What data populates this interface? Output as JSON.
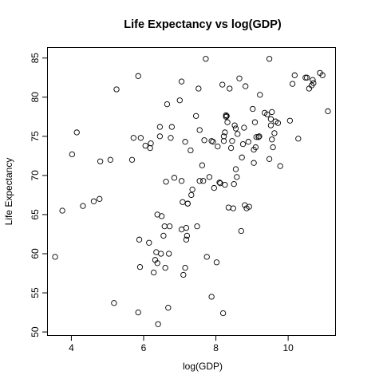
{
  "chart_data": {
    "type": "scatter",
    "title": "Life Expectancy vs  log(GDP)",
    "xlabel": "log(GDP)",
    "ylabel": "Life Expectancy",
    "xlim": [
      3.35,
      11.3
    ],
    "ylim": [
      49.6,
      86.3
    ],
    "xticks": [
      4,
      6,
      8,
      10
    ],
    "yticks": [
      50,
      55,
      60,
      65,
      70,
      75,
      80,
      85
    ],
    "grid": false,
    "point_color": "#000000",
    "points": [
      [
        3.55,
        59.6
      ],
      [
        3.75,
        65.5
      ],
      [
        4.02,
        72.7
      ],
      [
        4.15,
        75.5
      ],
      [
        4.32,
        66.1
      ],
      [
        4.62,
        66.7
      ],
      [
        4.78,
        67.0
      ],
      [
        4.8,
        71.8
      ],
      [
        5.08,
        72.0
      ],
      [
        5.18,
        53.7
      ],
      [
        5.25,
        81.0
      ],
      [
        5.68,
        72.0
      ],
      [
        5.72,
        74.8
      ],
      [
        5.85,
        82.7
      ],
      [
        5.85,
        52.5
      ],
      [
        5.88,
        61.8
      ],
      [
        5.9,
        58.3
      ],
      [
        5.92,
        74.8
      ],
      [
        6.05,
        73.8
      ],
      [
        6.15,
        61.4
      ],
      [
        6.18,
        73.5
      ],
      [
        6.2,
        74.1
      ],
      [
        6.28,
        57.6
      ],
      [
        6.32,
        59.2
      ],
      [
        6.35,
        60.2
      ],
      [
        6.38,
        65.0
      ],
      [
        6.38,
        58.8
      ],
      [
        6.4,
        51.0
      ],
      [
        6.45,
        76.2
      ],
      [
        6.45,
        75.0
      ],
      [
        6.48,
        60.0
      ],
      [
        6.5,
        64.8
      ],
      [
        6.55,
        62.3
      ],
      [
        6.58,
        63.5
      ],
      [
        6.6,
        58.2
      ],
      [
        6.62,
        69.2
      ],
      [
        6.65,
        79.1
      ],
      [
        6.68,
        53.1
      ],
      [
        6.7,
        60.0
      ],
      [
        6.72,
        63.5
      ],
      [
        6.75,
        74.8
      ],
      [
        6.78,
        76.2
      ],
      [
        6.85,
        69.7
      ],
      [
        7.0,
        79.6
      ],
      [
        7.05,
        82.0
      ],
      [
        7.05,
        63.1
      ],
      [
        7.05,
        69.3
      ],
      [
        7.08,
        66.6
      ],
      [
        7.1,
        57.3
      ],
      [
        7.15,
        74.3
      ],
      [
        7.15,
        58.2
      ],
      [
        7.18,
        61.8
      ],
      [
        7.18,
        63.3
      ],
      [
        7.2,
        62.3
      ],
      [
        7.22,
        66.4
      ],
      [
        7.22,
        66.4
      ],
      [
        7.3,
        73.2
      ],
      [
        7.32,
        67.5
      ],
      [
        7.35,
        68.2
      ],
      [
        7.45,
        77.6
      ],
      [
        7.48,
        63.5
      ],
      [
        7.52,
        81.1
      ],
      [
        7.55,
        69.3
      ],
      [
        7.55,
        75.8
      ],
      [
        7.62,
        71.3
      ],
      [
        7.65,
        69.3
      ],
      [
        7.68,
        74.5
      ],
      [
        7.72,
        84.9
      ],
      [
        7.75,
        59.6
      ],
      [
        7.82,
        69.8
      ],
      [
        7.88,
        74.4
      ],
      [
        7.88,
        54.5
      ],
      [
        7.92,
        74.3
      ],
      [
        7.95,
        68.4
      ],
      [
        8.02,
        58.9
      ],
      [
        8.05,
        73.7
      ],
      [
        8.1,
        69.1
      ],
      [
        8.12,
        69.0
      ],
      [
        8.18,
        81.6
      ],
      [
        8.2,
        52.4
      ],
      [
        8.22,
        74.4
      ],
      [
        8.22,
        75.0
      ],
      [
        8.25,
        75.5
      ],
      [
        8.25,
        68.8
      ],
      [
        8.28,
        77.5
      ],
      [
        8.28,
        77.7
      ],
      [
        8.3,
        77.6
      ],
      [
        8.32,
        76.8
      ],
      [
        8.35,
        65.9
      ],
      [
        8.38,
        81.1
      ],
      [
        8.42,
        73.5
      ],
      [
        8.45,
        74.4
      ],
      [
        8.48,
        65.8
      ],
      [
        8.5,
        68.9
      ],
      [
        8.52,
        76.4
      ],
      [
        8.55,
        70.8
      ],
      [
        8.55,
        76.0
      ],
      [
        8.58,
        69.8
      ],
      [
        8.6,
        75.3
      ],
      [
        8.65,
        82.4
      ],
      [
        8.7,
        62.9
      ],
      [
        8.72,
        72.3
      ],
      [
        8.75,
        74.0
      ],
      [
        8.78,
        76.1
      ],
      [
        8.8,
        66.2
      ],
      [
        8.82,
        81.4
      ],
      [
        8.85,
        65.8
      ],
      [
        8.9,
        74.3
      ],
      [
        8.92,
        66.0
      ],
      [
        9.02,
        78.5
      ],
      [
        9.05,
        71.6
      ],
      [
        9.05,
        73.3
      ],
      [
        9.08,
        76.8
      ],
      [
        9.1,
        73.6
      ],
      [
        9.12,
        74.9
      ],
      [
        9.18,
        74.9
      ],
      [
        9.2,
        75.0
      ],
      [
        9.22,
        80.3
      ],
      [
        9.35,
        78.0
      ],
      [
        9.42,
        77.8
      ],
      [
        9.48,
        72.1
      ],
      [
        9.48,
        84.9
      ],
      [
        9.52,
        76.4
      ],
      [
        9.52,
        77.2
      ],
      [
        9.55,
        78.1
      ],
      [
        9.55,
        74.6
      ],
      [
        9.58,
        73.6
      ],
      [
        9.62,
        75.4
      ],
      [
        9.65,
        76.9
      ],
      [
        9.72,
        76.7
      ],
      [
        9.78,
        71.2
      ],
      [
        10.05,
        77.0
      ],
      [
        10.12,
        81.7
      ],
      [
        10.18,
        82.8
      ],
      [
        10.28,
        74.7
      ],
      [
        10.48,
        82.5
      ],
      [
        10.52,
        82.5
      ],
      [
        10.58,
        81.1
      ],
      [
        10.65,
        81.5
      ],
      [
        10.68,
        82.2
      ],
      [
        10.7,
        81.8
      ],
      [
        10.88,
        83.1
      ],
      [
        10.95,
        82.8
      ],
      [
        11.1,
        78.2
      ]
    ]
  }
}
